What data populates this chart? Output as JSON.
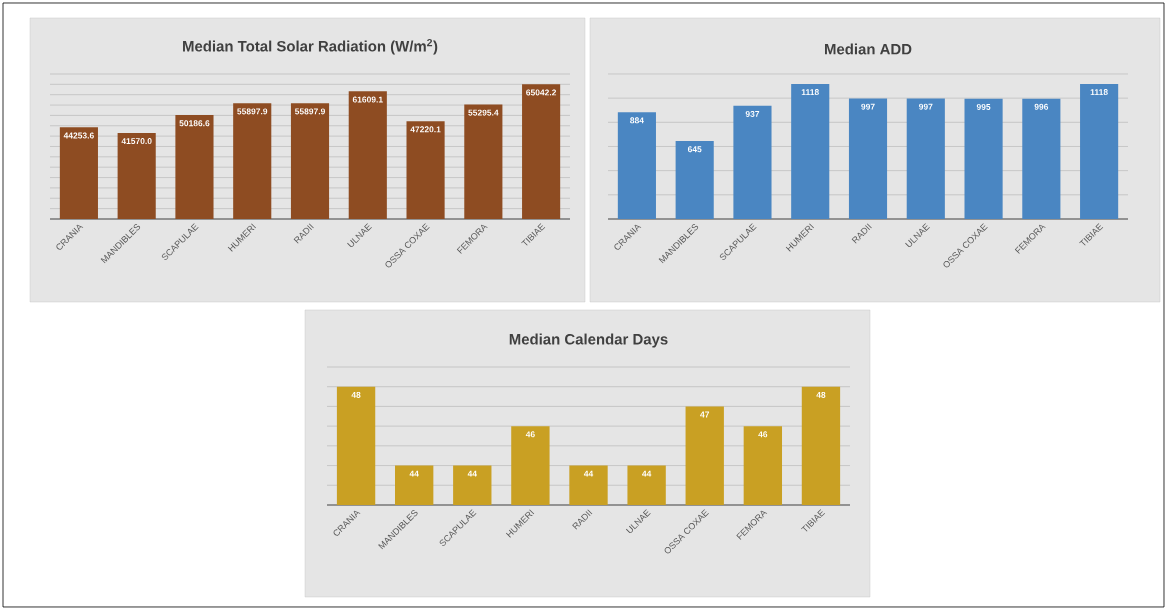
{
  "chart_data": [
    {
      "type": "bar",
      "title": "Median Total Solar Radiation (W/m$^{2}$)",
      "categories": [
        "CRANIA",
        "MANDIBLES",
        "SCAPULAE",
        "HUMERI",
        "RADII",
        "ULNAE",
        "OSSA COXAE",
        "FEMORA",
        "TIBIAE"
      ],
      "values": [
        44253.6,
        41570.0,
        50186.6,
        55897.9,
        55897.9,
        61609.1,
        47220.1,
        55295.4,
        65042.2
      ],
      "value_labels": [
        "44253.6",
        "41570.0",
        "50186.6",
        "55897.9",
        "55897.9",
        "61609.1",
        "47220.1",
        "55295.4",
        "65042.2"
      ],
      "color": "#8e4c22",
      "ylim": [
        0,
        70000
      ],
      "yticks": [
        {
          "value": 5000,
          "label": null
        },
        {
          "value": 10000,
          "label": null
        },
        {
          "value": 15000,
          "label": null
        },
        {
          "value": 20000,
          "label": null
        },
        {
          "value": 25000,
          "label": null
        },
        {
          "value": 30000,
          "label": null
        },
        {
          "value": 35000,
          "label": null
        },
        {
          "value": 40000,
          "label": null
        },
        {
          "value": 45000,
          "label": null
        },
        {
          "value": 50000,
          "label": null
        },
        {
          "value": 55000,
          "label": null
        },
        {
          "value": 60000,
          "label": null
        },
        {
          "value": 65000,
          "label": null
        },
        {
          "value": 70000,
          "label": null
        }
      ],
      "grid": "y",
      "tick_labels": "x"
    },
    {
      "type": "bar",
      "title": "Median ADD",
      "categories": [
        "CRANIA",
        "MANDIBLES",
        "SCAPULAE",
        "HUMERI",
        "RADII",
        "ULNAE",
        "OSSA COXAE",
        "FEMORA",
        "TIBIAE"
      ],
      "values": [
        884,
        645,
        937,
        1118,
        997,
        997,
        995,
        996,
        1118
      ],
      "value_labels": [
        "884",
        "645",
        "937",
        "1118",
        "997",
        "997",
        "995",
        "996",
        "1118"
      ],
      "color": "#4a86c2",
      "ylim": [
        0,
        1200
      ],
      "yticks": [
        {
          "value": 200,
          "label": null
        },
        {
          "value": 400,
          "label": null
        },
        {
          "value": 600,
          "label": null
        },
        {
          "value": 800,
          "label": null
        },
        {
          "value": 1000,
          "label": null
        },
        {
          "value": 1200,
          "label": null
        }
      ],
      "grid": "y",
      "tick_labels": "x"
    },
    {
      "type": "bar",
      "title": "Median Calendar Days",
      "categories": [
        "CRANIA",
        "MANDIBLES",
        "SCAPULAE",
        "HUMERI",
        "RADII",
        "ULNAE",
        "OSSA COXAE",
        "FEMORA",
        "TIBIAE"
      ],
      "values": [
        48,
        44,
        44,
        46,
        44,
        44,
        47,
        46,
        48
      ],
      "value_labels": [
        "48",
        "44",
        "44",
        "46",
        "44",
        "44",
        "47",
        "46",
        "48"
      ],
      "color": "#c9a023",
      "ylim": [
        42,
        49
      ],
      "yticks": [
        {
          "value": 43,
          "label": null
        },
        {
          "value": 44,
          "label": null
        },
        {
          "value": 45,
          "label": null
        },
        {
          "value": 46,
          "label": null
        },
        {
          "value": 47,
          "label": null
        },
        {
          "value": 48,
          "label": null
        },
        {
          "value": 49,
          "label": null
        }
      ],
      "grid": "y",
      "tick_labels": "x"
    }
  ]
}
